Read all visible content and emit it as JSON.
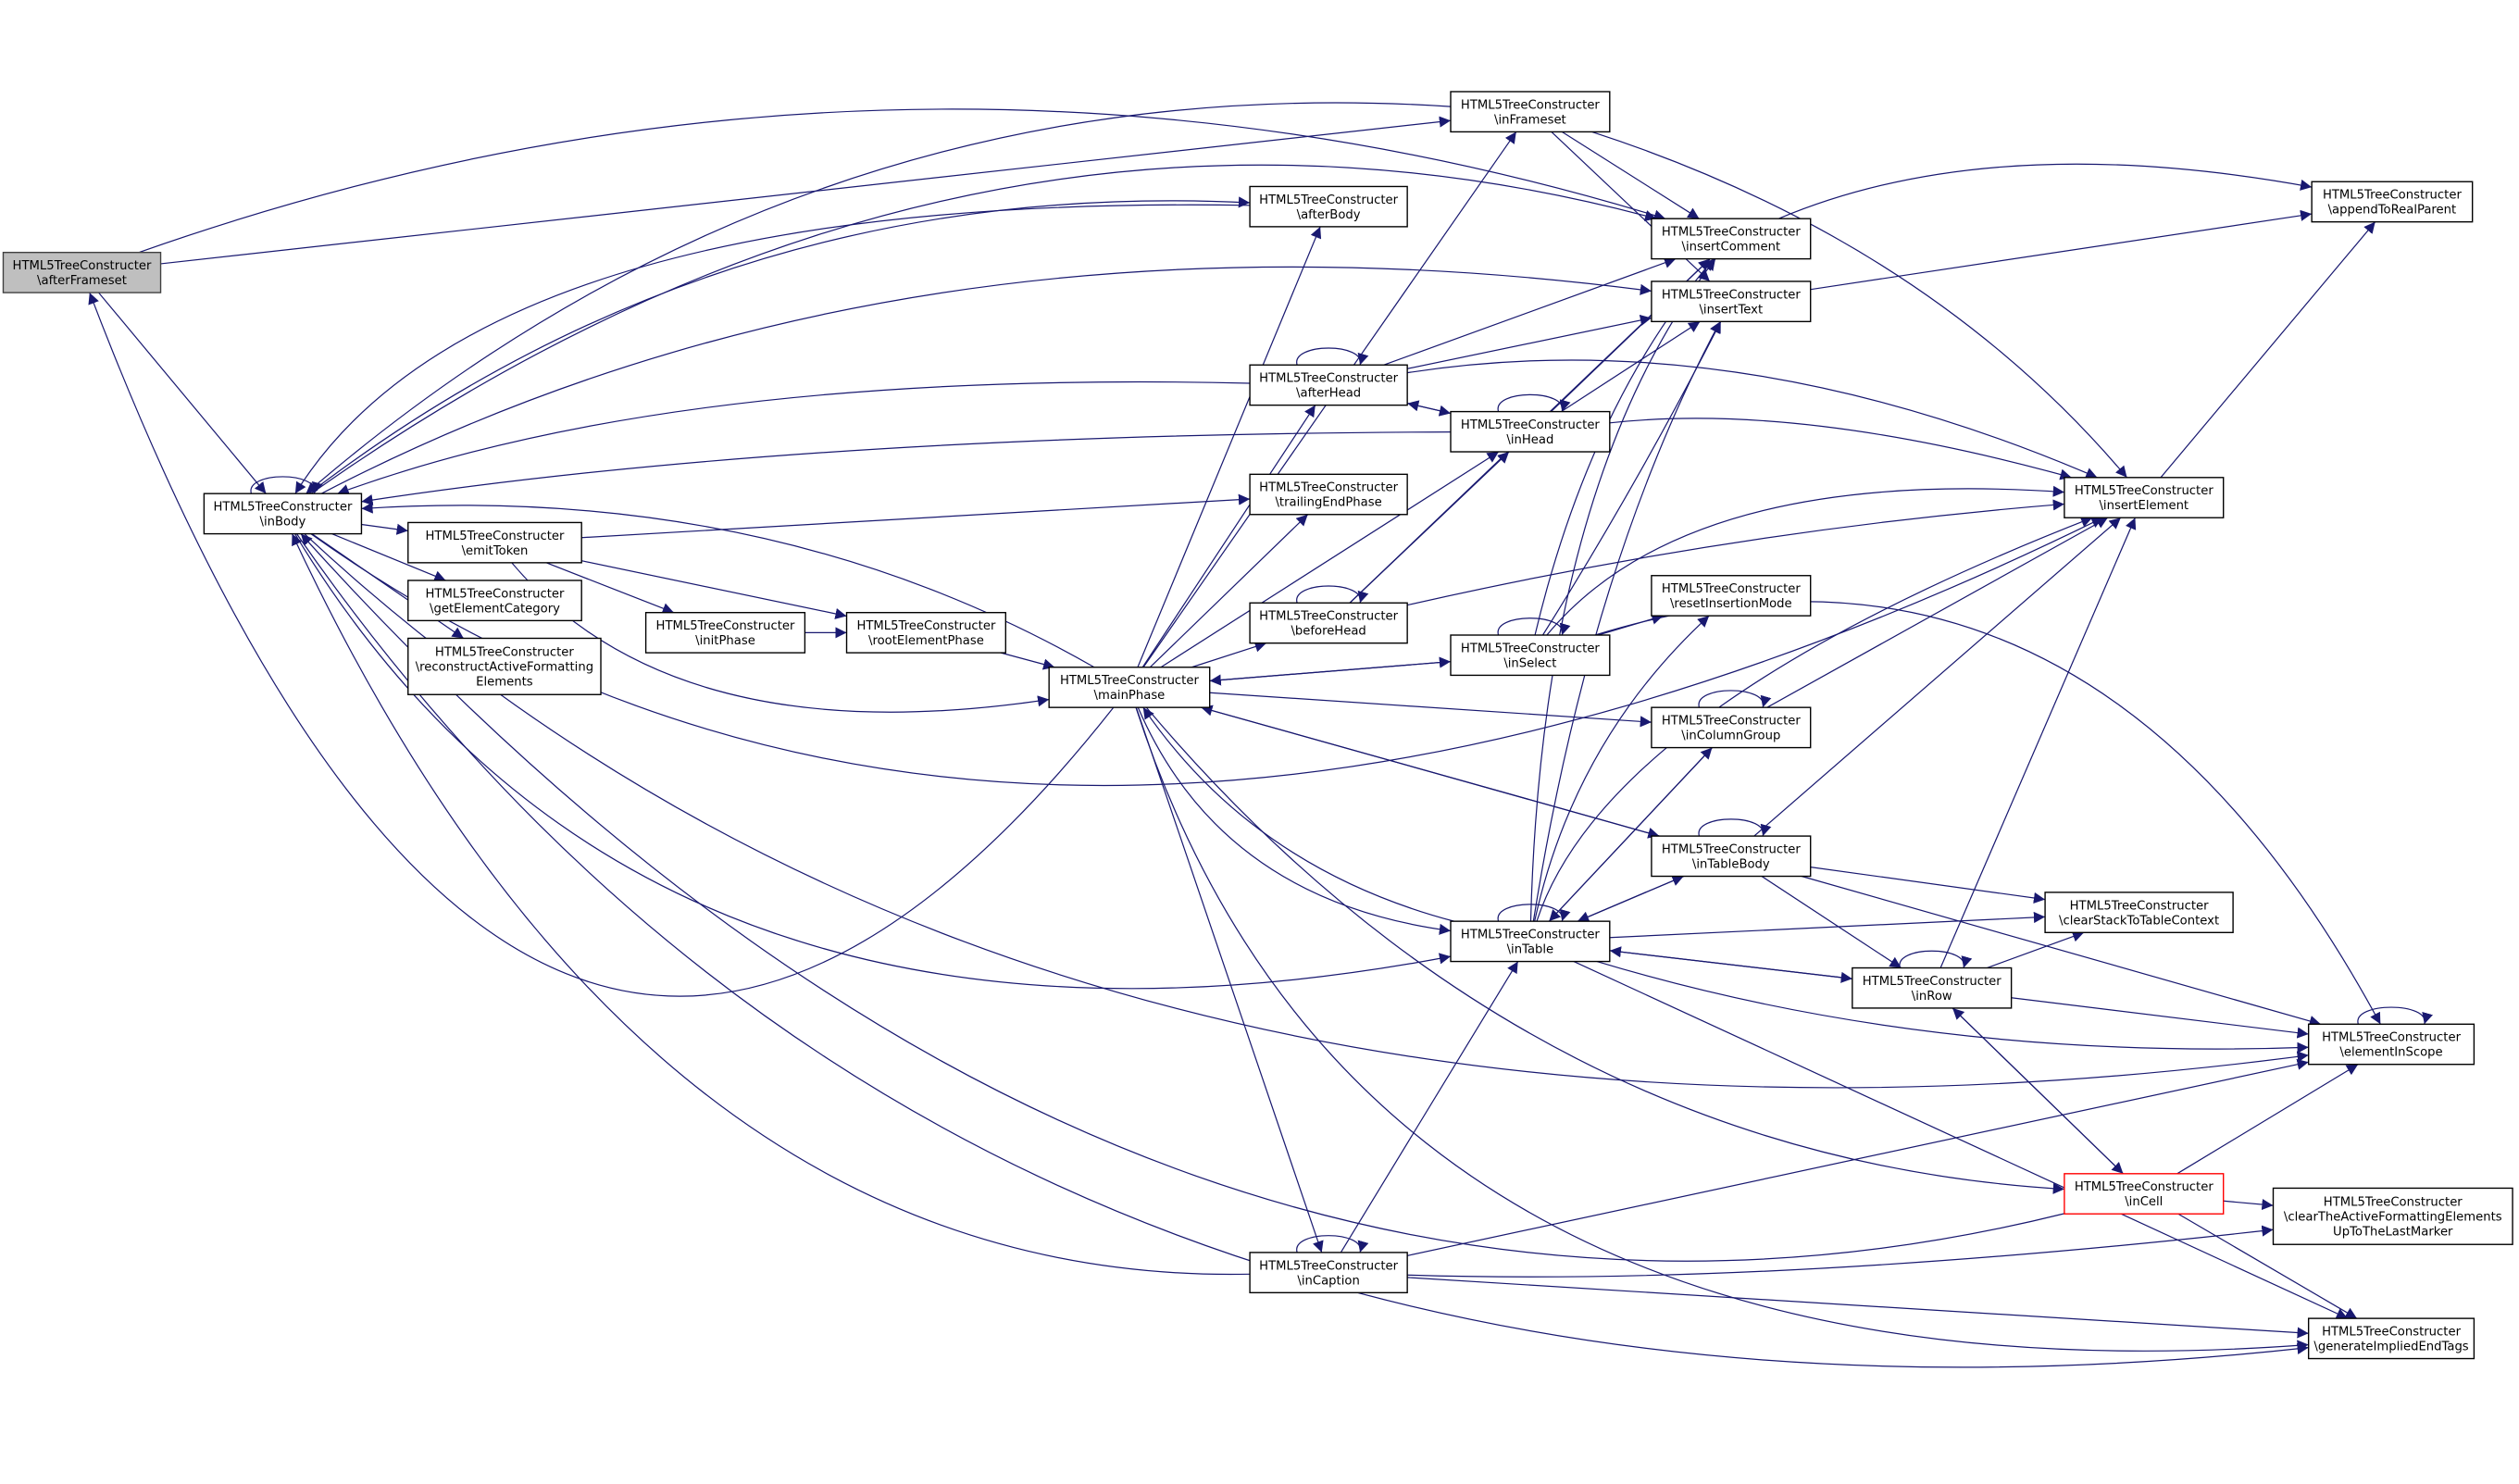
{
  "graph": {
    "node_fill_highlight": "#bfbfbf",
    "focus_border_color": "#ff0000",
    "edge_color": "#191970",
    "nodes": [
      {
        "id": "afterFrameset",
        "lines": [
          "HTML5TreeConstructer",
          "\\afterFrameset"
        ],
        "style": "root"
      },
      {
        "id": "inBody",
        "lines": [
          "HTML5TreeConstructer",
          "\\inBody"
        ]
      },
      {
        "id": "emitToken",
        "lines": [
          "HTML5TreeConstructer",
          "\\emitToken"
        ]
      },
      {
        "id": "getElementCategory",
        "lines": [
          "HTML5TreeConstructer",
          "\\getElementCategory"
        ]
      },
      {
        "id": "reconstruct",
        "lines": [
          "HTML5TreeConstructer",
          "\\reconstructActiveFormatting",
          "Elements"
        ]
      },
      {
        "id": "initPhase",
        "lines": [
          "HTML5TreeConstructer",
          "\\initPhase"
        ]
      },
      {
        "id": "rootElementPhase",
        "lines": [
          "HTML5TreeConstructer",
          "\\rootElementPhase"
        ]
      },
      {
        "id": "mainPhase",
        "lines": [
          "HTML5TreeConstructer",
          "\\mainPhase"
        ]
      },
      {
        "id": "inFrameset",
        "lines": [
          "HTML5TreeConstructer",
          "\\inFrameset"
        ]
      },
      {
        "id": "afterBody",
        "lines": [
          "HTML5TreeConstructer",
          "\\afterBody"
        ]
      },
      {
        "id": "afterHead",
        "lines": [
          "HTML5TreeConstructer",
          "\\afterHead"
        ]
      },
      {
        "id": "trailingEndPhase",
        "lines": [
          "HTML5TreeConstructer",
          "\\trailingEndPhase"
        ]
      },
      {
        "id": "beforeHead",
        "lines": [
          "HTML5TreeConstructer",
          "\\beforeHead"
        ]
      },
      {
        "id": "inHead",
        "lines": [
          "HTML5TreeConstructer",
          "\\inHead"
        ]
      },
      {
        "id": "inSelect",
        "lines": [
          "HTML5TreeConstructer",
          "\\inSelect"
        ]
      },
      {
        "id": "insertComment",
        "lines": [
          "HTML5TreeConstructer",
          "\\insertComment"
        ]
      },
      {
        "id": "insertText",
        "lines": [
          "HTML5TreeConstructer",
          "\\insertText"
        ]
      },
      {
        "id": "resetInsertionMode",
        "lines": [
          "HTML5TreeConstructer",
          "\\resetInsertionMode"
        ]
      },
      {
        "id": "inColumnGroup",
        "lines": [
          "HTML5TreeConstructer",
          "\\inColumnGroup"
        ]
      },
      {
        "id": "inTableBody",
        "lines": [
          "HTML5TreeConstructer",
          "\\inTableBody"
        ]
      },
      {
        "id": "inTable",
        "lines": [
          "HTML5TreeConstructer",
          "\\inTable"
        ]
      },
      {
        "id": "clearStackToTableContext",
        "lines": [
          "HTML5TreeConstructer",
          "\\clearStackToTableContext"
        ]
      },
      {
        "id": "inRow",
        "lines": [
          "HTML5TreeConstructer",
          "\\inRow"
        ]
      },
      {
        "id": "insertElement",
        "lines": [
          "HTML5TreeConstructer",
          "\\insertElement"
        ]
      },
      {
        "id": "appendToRealParent",
        "lines": [
          "HTML5TreeConstructer",
          "\\appendToRealParent"
        ]
      },
      {
        "id": "elementInScope",
        "lines": [
          "HTML5TreeConstructer",
          "\\elementInScope"
        ]
      },
      {
        "id": "inCell",
        "lines": [
          "HTML5TreeConstructer",
          "\\inCell"
        ],
        "style": "focus"
      },
      {
        "id": "clearTheActive",
        "lines": [
          "HTML5TreeConstructer",
          "\\clearTheActiveFormattingElements",
          "UpToTheLastMarker"
        ]
      },
      {
        "id": "inCaption",
        "lines": [
          "HTML5TreeConstructer",
          "\\inCaption"
        ]
      },
      {
        "id": "generateImpliedEndTags",
        "lines": [
          "HTML5TreeConstructer",
          "\\generateImpliedEndTags"
        ]
      }
    ],
    "edges": [
      [
        "afterFrameset",
        "inBody"
      ],
      [
        "afterFrameset",
        "insertComment"
      ],
      [
        "afterFrameset",
        "inFrameset"
      ],
      [
        "inBody",
        "inBody"
      ],
      [
        "inBody",
        "emitToken"
      ],
      [
        "inBody",
        "getElementCategory"
      ],
      [
        "inBody",
        "reconstruct"
      ],
      [
        "inBody",
        "insertComment"
      ],
      [
        "inBody",
        "insertText"
      ],
      [
        "inBody",
        "afterBody"
      ],
      [
        "inBody",
        "insertElement"
      ],
      [
        "inBody",
        "inTable"
      ],
      [
        "inBody",
        "elementInScope"
      ],
      [
        "inBody",
        "generateImpliedEndTags"
      ],
      [
        "afterBody",
        "inBody"
      ],
      [
        "afterHead",
        "inBody"
      ],
      [
        "inHead",
        "inBody"
      ],
      [
        "mainPhase",
        "inBody"
      ],
      [
        "inCaption",
        "inBody"
      ],
      [
        "inCell",
        "inBody"
      ],
      [
        "mainPhase",
        "afterFrameset"
      ],
      [
        "inFrameset",
        "inBody"
      ],
      [
        "emitToken",
        "trailingEndPhase"
      ],
      [
        "emitToken",
        "initPhase"
      ],
      [
        "emitToken",
        "rootElementPhase"
      ],
      [
        "emitToken",
        "mainPhase"
      ],
      [
        "initPhase",
        "rootElementPhase"
      ],
      [
        "rootElementPhase",
        "mainPhase"
      ],
      [
        "mainPhase",
        "inFrameset"
      ],
      [
        "mainPhase",
        "afterBody"
      ],
      [
        "mainPhase",
        "afterHead"
      ],
      [
        "mainPhase",
        "trailingEndPhase"
      ],
      [
        "mainPhase",
        "beforeHead"
      ],
      [
        "mainPhase",
        "inHead"
      ],
      [
        "mainPhase",
        "inSelect"
      ],
      [
        "mainPhase",
        "inColumnGroup"
      ],
      [
        "mainPhase",
        "inTableBody"
      ],
      [
        "mainPhase",
        "inTable"
      ],
      [
        "mainPhase",
        "inCaption"
      ],
      [
        "mainPhase",
        "inCell"
      ],
      [
        "mainPhase",
        "generateImpliedEndTags"
      ],
      [
        "inSelect",
        "mainPhase"
      ],
      [
        "inTableBody",
        "mainPhase"
      ],
      [
        "inTable",
        "mainPhase"
      ],
      [
        "inFrameset",
        "insertComment"
      ],
      [
        "inFrameset",
        "insertText"
      ],
      [
        "inFrameset",
        "insertElement"
      ],
      [
        "afterHead",
        "afterHead"
      ],
      [
        "afterHead",
        "insertComment"
      ],
      [
        "afterHead",
        "insertText"
      ],
      [
        "afterHead",
        "inHead"
      ],
      [
        "afterHead",
        "insertElement"
      ],
      [
        "inHead",
        "afterHead"
      ],
      [
        "inHead",
        "inHead"
      ],
      [
        "inHead",
        "insertComment"
      ],
      [
        "inHead",
        "insertText"
      ],
      [
        "inHead",
        "insertElement"
      ],
      [
        "beforeHead",
        "beforeHead"
      ],
      [
        "beforeHead",
        "inHead"
      ],
      [
        "beforeHead",
        "insertComment"
      ],
      [
        "beforeHead",
        "insertElement"
      ],
      [
        "inSelect",
        "inSelect"
      ],
      [
        "inSelect",
        "insertComment"
      ],
      [
        "inSelect",
        "insertText"
      ],
      [
        "inSelect",
        "insertElement"
      ],
      [
        "inSelect",
        "resetInsertionMode"
      ],
      [
        "inSelect",
        "elementInScope"
      ],
      [
        "insertComment",
        "appendToRealParent"
      ],
      [
        "insertText",
        "appendToRealParent"
      ],
      [
        "insertElement",
        "appendToRealParent"
      ],
      [
        "inColumnGroup",
        "inColumnGroup"
      ],
      [
        "inColumnGroup",
        "insertElement"
      ],
      [
        "inColumnGroup",
        "inTable"
      ],
      [
        "inTableBody",
        "inTableBody"
      ],
      [
        "inTableBody",
        "insertElement"
      ],
      [
        "inTableBody",
        "inTable"
      ],
      [
        "inTableBody",
        "clearStackToTableContext"
      ],
      [
        "inTableBody",
        "inRow"
      ],
      [
        "inTableBody",
        "elementInScope"
      ],
      [
        "inTable",
        "inTable"
      ],
      [
        "inTable",
        "inColumnGroup"
      ],
      [
        "inTable",
        "inTableBody"
      ],
      [
        "inTable",
        "clearStackToTableContext"
      ],
      [
        "inTable",
        "inRow"
      ],
      [
        "inTable",
        "elementInScope"
      ],
      [
        "inTable",
        "generateImpliedEndTags"
      ],
      [
        "inTable",
        "resetInsertionMode"
      ],
      [
        "inTable",
        "insertText"
      ],
      [
        "inTable",
        "insertComment"
      ],
      [
        "inTable",
        "insertElement"
      ],
      [
        "inRow",
        "inRow"
      ],
      [
        "inRow",
        "inTable"
      ],
      [
        "inRow",
        "clearStackToTableContext"
      ],
      [
        "inRow",
        "elementInScope"
      ],
      [
        "inRow",
        "inCell"
      ],
      [
        "inRow",
        "insertElement"
      ],
      [
        "inCell",
        "inRow"
      ],
      [
        "inCell",
        "elementInScope"
      ],
      [
        "inCell",
        "clearTheActive"
      ],
      [
        "inCell",
        "generateImpliedEndTags"
      ],
      [
        "inCaption",
        "inCaption"
      ],
      [
        "inCaption",
        "inTable"
      ],
      [
        "inCaption",
        "elementInScope"
      ],
      [
        "inCaption",
        "clearTheActive"
      ],
      [
        "inCaption",
        "generateImpliedEndTags"
      ],
      [
        "elementInScope",
        "elementInScope"
      ]
    ]
  }
}
